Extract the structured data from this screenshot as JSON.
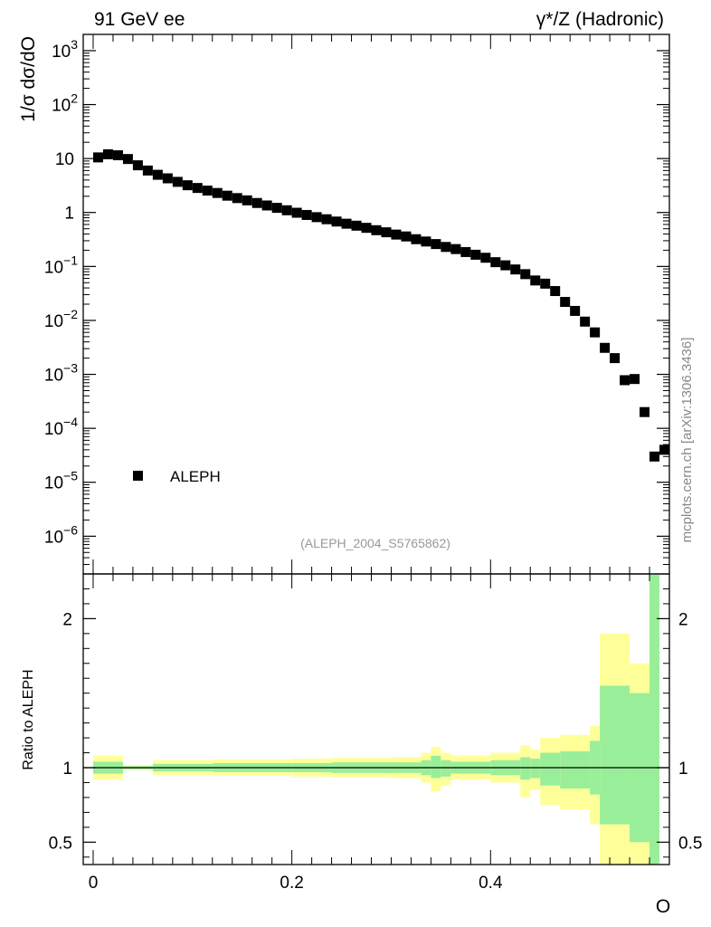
{
  "header": {
    "left": "91 GeV ee",
    "right": "γ*/Z (Hadronic)"
  },
  "watermark": "mcplots.cern.ch [arXiv:1306.3436]",
  "reference": "(ALEPH_2004_S5765862)",
  "colors": {
    "band_outer": "#ffff99",
    "band_inner": "#99ee99",
    "data_marker": "#000000"
  },
  "chart_data": [
    {
      "type": "scatter",
      "title": "",
      "ylabel": "1/σ  dσ/dO",
      "xlabel": "",
      "yscale": "log",
      "xlim": [
        -0.01,
        0.58
      ],
      "ylim": [
        2e-07,
        2000
      ],
      "x_ticks": [
        0,
        0.2,
        0.4
      ],
      "y_ticks": [
        {
          "value": 1e-06,
          "base": "10",
          "exp": "−6"
        },
        {
          "value": 1e-05,
          "base": "10",
          "exp": "−5"
        },
        {
          "value": 0.0001,
          "base": "10",
          "exp": "−4"
        },
        {
          "value": 0.001,
          "base": "10",
          "exp": "−3"
        },
        {
          "value": 0.01,
          "base": "10",
          "exp": "−2"
        },
        {
          "value": 0.1,
          "base": "10",
          "exp": "−1"
        },
        {
          "value": 1,
          "base": "1",
          "exp": ""
        },
        {
          "value": 10,
          "base": "10",
          "exp": ""
        },
        {
          "value": 100,
          "base": "10",
          "exp": "2"
        },
        {
          "value": 1000,
          "base": "10",
          "exp": "3"
        }
      ],
      "legend": {
        "label": "ALEPH",
        "position": "bottom-left"
      },
      "series": [
        {
          "name": "ALEPH",
          "points": [
            [
              0.005,
              10.5
            ],
            [
              0.015,
              12.0
            ],
            [
              0.025,
              11.5
            ],
            [
              0.035,
              9.8
            ],
            [
              0.045,
              7.5
            ],
            [
              0.055,
              6.0
            ],
            [
              0.065,
              5.0
            ],
            [
              0.075,
              4.3
            ],
            [
              0.085,
              3.7
            ],
            [
              0.095,
              3.2
            ],
            [
              0.105,
              2.85
            ],
            [
              0.115,
              2.55
            ],
            [
              0.125,
              2.3
            ],
            [
              0.135,
              2.05
            ],
            [
              0.145,
              1.85
            ],
            [
              0.155,
              1.68
            ],
            [
              0.165,
              1.5
            ],
            [
              0.175,
              1.35
            ],
            [
              0.185,
              1.22
            ],
            [
              0.195,
              1.1
            ],
            [
              0.205,
              0.99
            ],
            [
              0.215,
              0.9
            ],
            [
              0.225,
              0.82
            ],
            [
              0.235,
              0.75
            ],
            [
              0.245,
              0.68
            ],
            [
              0.255,
              0.62
            ],
            [
              0.265,
              0.57
            ],
            [
              0.275,
              0.52
            ],
            [
              0.285,
              0.47
            ],
            [
              0.295,
              0.43
            ],
            [
              0.305,
              0.39
            ],
            [
              0.315,
              0.36
            ],
            [
              0.325,
              0.32
            ],
            [
              0.335,
              0.29
            ],
            [
              0.345,
              0.26
            ],
            [
              0.355,
              0.23
            ],
            [
              0.365,
              0.21
            ],
            [
              0.375,
              0.185
            ],
            [
              0.385,
              0.165
            ],
            [
              0.395,
              0.145
            ],
            [
              0.405,
              0.12
            ],
            [
              0.415,
              0.105
            ],
            [
              0.425,
              0.088
            ],
            [
              0.435,
              0.072
            ],
            [
              0.445,
              0.055
            ],
            [
              0.455,
              0.048
            ],
            [
              0.465,
              0.035
            ],
            [
              0.475,
              0.022
            ],
            [
              0.485,
              0.015
            ],
            [
              0.495,
              0.0095
            ],
            [
              0.505,
              0.006
            ],
            [
              0.515,
              0.0031
            ],
            [
              0.525,
              0.002
            ],
            [
              0.535,
              0.00078
            ],
            [
              0.545,
              0.00082
            ],
            [
              0.555,
              0.0002
            ],
            [
              0.565,
              3e-05
            ],
            [
              0.575,
              4e-05
            ]
          ]
        }
      ]
    },
    {
      "type": "area",
      "title": "",
      "ylabel": "Ratio to ALEPH",
      "xlabel": "O",
      "xlim": [
        -0.01,
        0.58
      ],
      "ylim": [
        0.35,
        2.3
      ],
      "x_ticks": [
        0,
        0.2,
        0.4
      ],
      "y_ticks": [
        0.5,
        1,
        2
      ],
      "reference_line": 1,
      "bands": [
        {
          "x0": 0.0,
          "x1": 0.03,
          "outer": [
            0.92,
            1.08
          ],
          "inner": [
            0.96,
            1.04
          ]
        },
        {
          "x0": 0.03,
          "x1": 0.06,
          "outer": [
            0.985,
            1.015
          ],
          "inner": [
            0.99,
            1.01
          ]
        },
        {
          "x0": 0.06,
          "x1": 0.12,
          "outer": [
            0.95,
            1.05
          ],
          "inner": [
            0.975,
            1.025
          ]
        },
        {
          "x0": 0.12,
          "x1": 0.2,
          "outer": [
            0.945,
            1.055
          ],
          "inner": [
            0.97,
            1.03
          ]
        },
        {
          "x0": 0.2,
          "x1": 0.24,
          "outer": [
            0.94,
            1.06
          ],
          "inner": [
            0.97,
            1.03
          ]
        },
        {
          "x0": 0.24,
          "x1": 0.3,
          "outer": [
            0.935,
            1.065
          ],
          "inner": [
            0.965,
            1.035
          ]
        },
        {
          "x0": 0.3,
          "x1": 0.33,
          "outer": [
            0.93,
            1.07
          ],
          "inner": [
            0.965,
            1.035
          ]
        },
        {
          "x0": 0.33,
          "x1": 0.34,
          "outer": [
            0.9,
            1.1
          ],
          "inner": [
            0.95,
            1.05
          ]
        },
        {
          "x0": 0.34,
          "x1": 0.35,
          "outer": [
            0.84,
            1.14
          ],
          "inner": [
            0.93,
            1.08
          ]
        },
        {
          "x0": 0.35,
          "x1": 0.36,
          "outer": [
            0.88,
            1.1
          ],
          "inner": [
            0.94,
            1.05
          ]
        },
        {
          "x0": 0.36,
          "x1": 0.4,
          "outer": [
            0.92,
            1.08
          ],
          "inner": [
            0.96,
            1.04
          ]
        },
        {
          "x0": 0.4,
          "x1": 0.43,
          "outer": [
            0.9,
            1.1
          ],
          "inner": [
            0.95,
            1.05
          ]
        },
        {
          "x0": 0.43,
          "x1": 0.44,
          "outer": [
            0.8,
            1.15
          ],
          "inner": [
            0.92,
            1.07
          ]
        },
        {
          "x0": 0.44,
          "x1": 0.45,
          "outer": [
            0.85,
            1.12
          ],
          "inner": [
            0.93,
            1.06
          ]
        },
        {
          "x0": 0.45,
          "x1": 0.47,
          "outer": [
            0.75,
            1.2
          ],
          "inner": [
            0.88,
            1.1
          ]
        },
        {
          "x0": 0.47,
          "x1": 0.5,
          "outer": [
            0.72,
            1.22
          ],
          "inner": [
            0.86,
            1.11
          ]
        },
        {
          "x0": 0.5,
          "x1": 0.51,
          "outer": [
            0.62,
            1.28
          ],
          "inner": [
            0.82,
            1.18
          ]
        },
        {
          "x0": 0.51,
          "x1": 0.54,
          "outer": [
            0.35,
            1.9
          ],
          "inner": [
            0.62,
            1.55
          ]
        },
        {
          "x0": 0.54,
          "x1": 0.56,
          "outer": [
            0.35,
            1.7
          ],
          "inner": [
            0.5,
            1.5
          ]
        },
        {
          "x0": 0.56,
          "x1": 0.57,
          "outer": [
            0.35,
            2.3
          ],
          "inner": [
            0.35,
            2.3
          ]
        }
      ]
    }
  ]
}
